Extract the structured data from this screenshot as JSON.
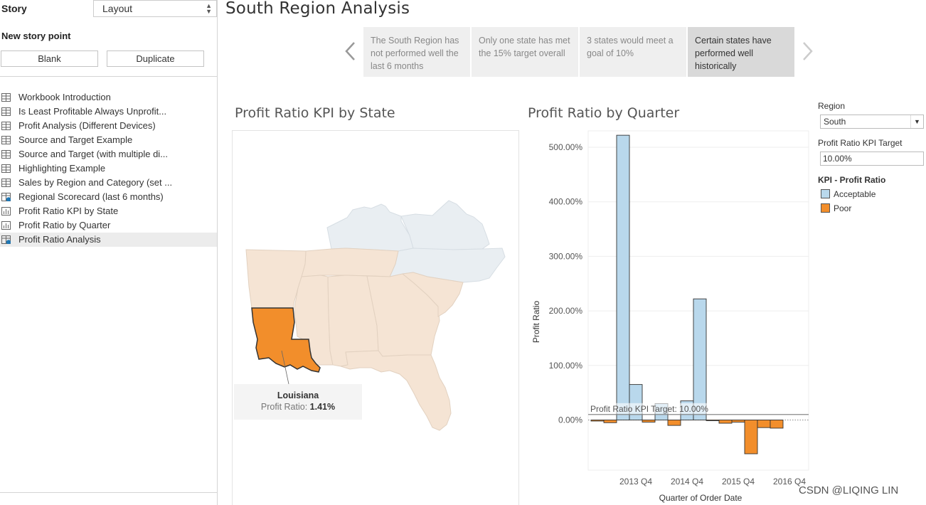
{
  "pane": {
    "story_label": "Story",
    "layout_value": "Layout",
    "new_story_point": "New story point",
    "blank_label": "Blank",
    "duplicate_label": "Duplicate",
    "sheets": [
      {
        "label": "Workbook Introduction",
        "icon": "grid-icon"
      },
      {
        "label": "Is Least Profitable Always Unprofit...",
        "icon": "grid-icon"
      },
      {
        "label": "Profit Analysis (Different Devices)",
        "icon": "grid-icon"
      },
      {
        "label": "Source and Target Example",
        "icon": "grid-icon"
      },
      {
        "label": "Source and Target (with multiple di...",
        "icon": "grid-icon"
      },
      {
        "label": "Highlighting Example",
        "icon": "grid-icon"
      },
      {
        "label": "Sales by Region and Category (set ...",
        "icon": "grid-icon"
      },
      {
        "label": "Regional Scorecard (last 6 months)",
        "icon": "grid-check-icon"
      },
      {
        "label": "Profit Ratio KPI by State",
        "icon": "chart-icon"
      },
      {
        "label": "Profit Ratio by Quarter",
        "icon": "chart-icon"
      },
      {
        "label": "Profit Ratio Analysis",
        "icon": "grid-check-icon"
      }
    ]
  },
  "story": {
    "title": "South Region Analysis",
    "captions": [
      "The South Region has not performed well the last 6 months",
      "Only one state has met the 15% target overall",
      "3 states would meet a goal of 10%",
      "Certain states have performed well historically"
    ],
    "active_caption": 3
  },
  "map": {
    "title": "Profit Ratio KPI by State",
    "tooltip_state": "Louisiana",
    "tooltip_metric_label": "Profit Ratio:",
    "tooltip_metric_value": "1.41%"
  },
  "filters": {
    "region_label": "Region",
    "region_value": "South",
    "target_label": "Profit Ratio KPI Target",
    "target_value": "10.00%",
    "kpi_legend_title": "KPI - Profit Ratio"
  },
  "colors": {
    "acceptable": "#b9d8ec",
    "poor": "#f28e2b",
    "map_acceptable": "#e9eef2",
    "map_poor": "#f5e4d4",
    "map_highlight": "#f28e2b"
  },
  "chart_data": {
    "type": "bar",
    "title": "Profit Ratio by Quarter",
    "xlabel": "Quarter of Order Date",
    "ylabel": "Profit Ratio",
    "ylim": [
      -92,
      530
    ],
    "y_ticks": [
      0,
      100,
      200,
      300,
      400,
      500
    ],
    "y_tick_labels": [
      "0.00%",
      "100.00%",
      "200.00%",
      "300.00%",
      "400.00%",
      "500.00%"
    ],
    "x_tick_labels": [
      {
        "index": 3,
        "label": "2013 Q4"
      },
      {
        "index": 7,
        "label": "2014 Q4"
      },
      {
        "index": 11,
        "label": "2015 Q4"
      },
      {
        "index": 15,
        "label": "2016 Q4"
      }
    ],
    "values": [
      -2,
      -5,
      522,
      65,
      -4,
      30,
      -10,
      35,
      222,
      -1,
      -6,
      -4,
      -62,
      -14,
      -15
    ],
    "kpi": [
      "Poor",
      "Poor",
      "Acceptable",
      "Acceptable",
      "Poor",
      "Acceptable",
      "Poor",
      "Acceptable",
      "Acceptable",
      "Poor",
      "Poor",
      "Poor",
      "Poor",
      "Poor",
      "Poor"
    ],
    "reference_line": {
      "value": 10,
      "label": "Profit Ratio KPI Target: 10.00%"
    },
    "legend": [
      {
        "name": "Acceptable",
        "color": "#b9d8ec"
      },
      {
        "name": "Poor",
        "color": "#f28e2b"
      }
    ]
  },
  "watermark": "CSDN @LIQING LIN"
}
